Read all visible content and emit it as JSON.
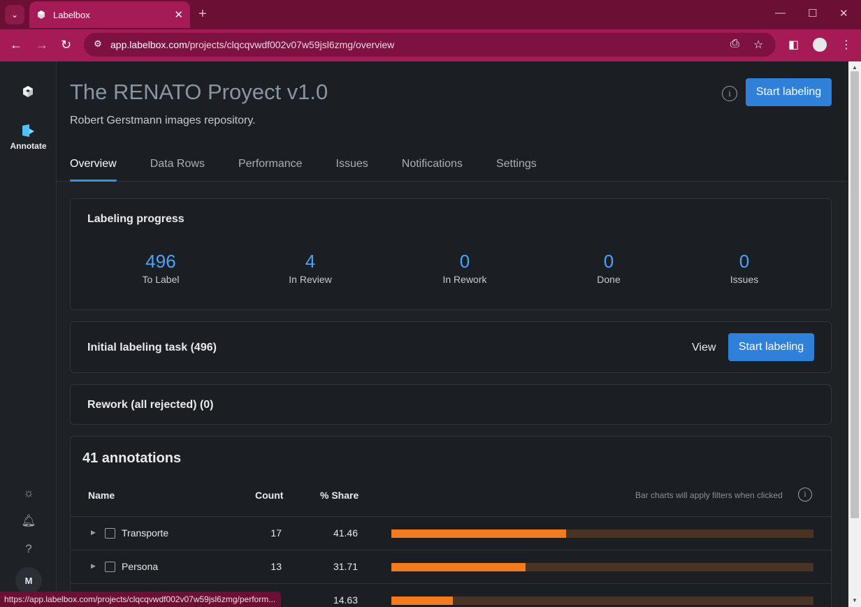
{
  "browser": {
    "tab_title": "Labelbox",
    "url_host": "app.labelbox.com",
    "url_path": "/projects/clqcqvwdf002v07w59jsl6zmg/overview",
    "status_url": "https://app.labelbox.com/projects/clqcqvwdf002v07w59jsl6zmg/perform..."
  },
  "sidebar": {
    "annotate_label": "Annotate",
    "user_initial": "M"
  },
  "project": {
    "title": "The RENATO Proyect v1.0",
    "description": "Robert Gerstmann images repository.",
    "start_label": "Start labeling",
    "info_icon": "i"
  },
  "tabs": [
    {
      "label": "Overview",
      "active": true
    },
    {
      "label": "Data Rows"
    },
    {
      "label": "Performance"
    },
    {
      "label": "Issues"
    },
    {
      "label": "Notifications"
    },
    {
      "label": "Settings"
    }
  ],
  "progress": {
    "title": "Labeling progress",
    "stats": [
      {
        "value": "496",
        "label": "To Label"
      },
      {
        "value": "4",
        "label": "In Review"
      },
      {
        "value": "0",
        "label": "In Rework"
      },
      {
        "value": "0",
        "label": "Done"
      },
      {
        "value": "0",
        "label": "Issues"
      }
    ]
  },
  "task": {
    "title": "Initial labeling task  (496)",
    "view_label": "View",
    "start_label": "Start labeling"
  },
  "rework": {
    "title": "Rework (all rejected)  (0)"
  },
  "annotations": {
    "heading": "41 annotations",
    "columns": {
      "name": "Name",
      "count": "Count",
      "share": "% Share"
    },
    "hint": "Bar charts will apply filters when clicked",
    "rows": [
      {
        "name": "Transporte",
        "count": "17",
        "share": "41.46",
        "fraction": 0.4146
      },
      {
        "name": "Persona",
        "count": "13",
        "share": "31.71",
        "fraction": 0.3171
      },
      {
        "name": "",
        "count": "",
        "share": "14.63",
        "fraction": 0.1463
      }
    ],
    "bar_color": "#f47a1f",
    "bar_track_color": "#4a3325"
  },
  "colors": {
    "accent": "#2f80d9",
    "stat_number": "#4ba3f5",
    "browser_tab": "#a61a55"
  }
}
